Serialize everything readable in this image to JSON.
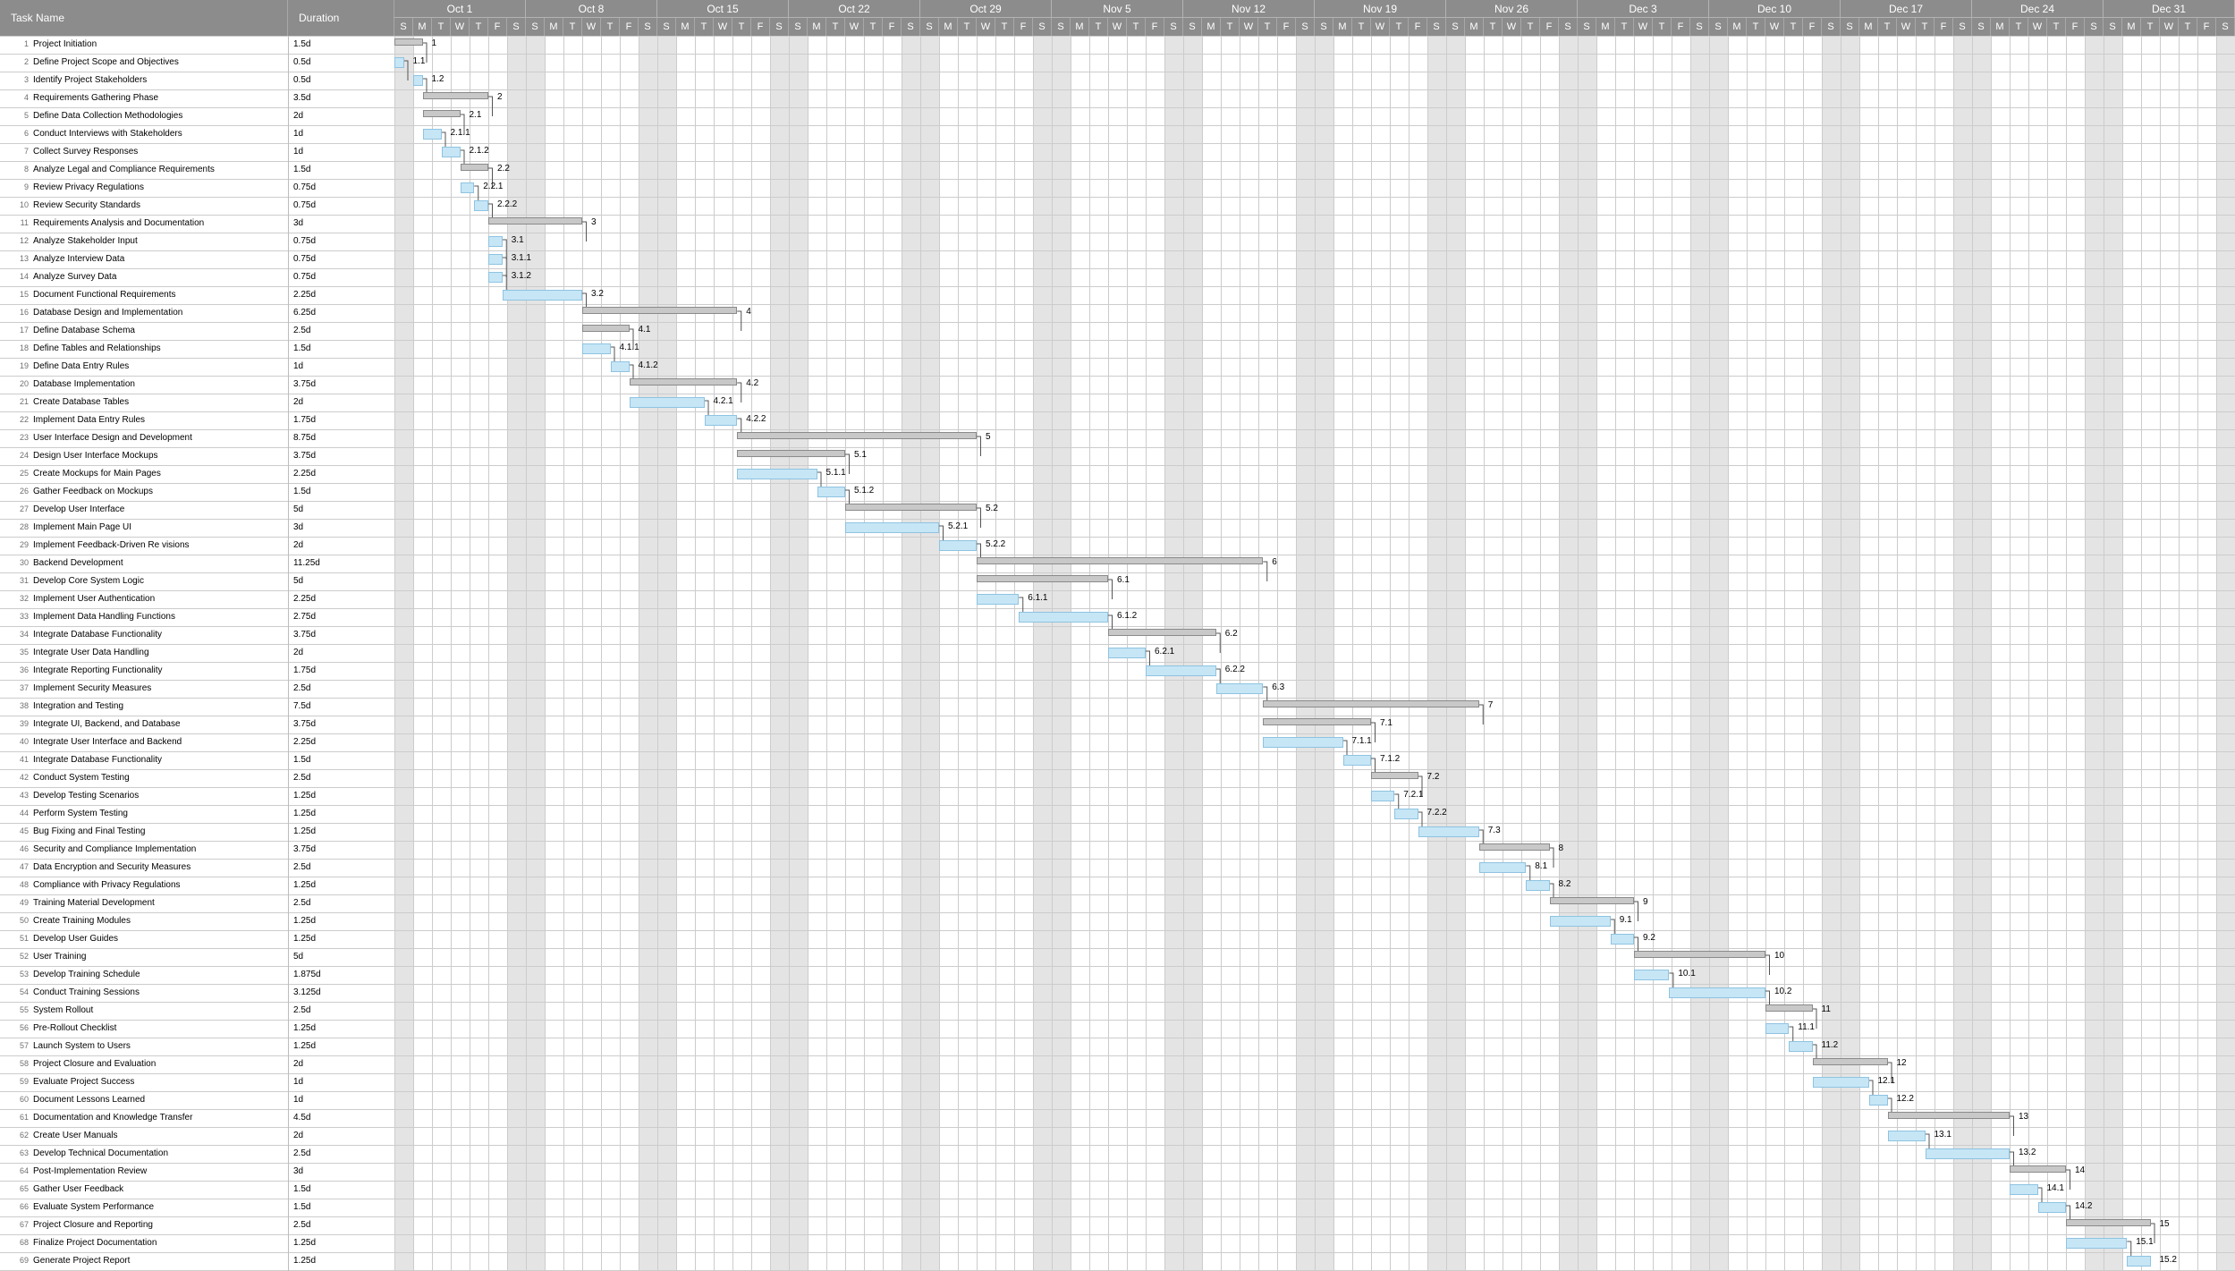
{
  "header": {
    "task_col": "Task Name",
    "duration_col": "Duration"
  },
  "weeks": [
    "Oct 1",
    "Oct 8",
    "Oct 15",
    "Oct 22",
    "Oct 29",
    "Nov 5",
    "Nov 12",
    "Nov 19",
    "Nov 26",
    "Dec 3",
    "Dec 10",
    "Dec 17",
    "Dec 24",
    "Dec 31"
  ],
  "day_letters": [
    "S",
    "M",
    "T",
    "W",
    "T",
    "F",
    "S"
  ],
  "colors": {
    "header_bg": "#8c8c8c",
    "summary_bar": "#c8c8c8",
    "task_bar": "#c6e6f6",
    "weekend_shade": "#e4e4e4",
    "grid_line": "#cccccc"
  },
  "tasks": [
    {
      "id": "1",
      "name": "Project Initiation",
      "duration": "1.5d",
      "start": 0,
      "end": 1.5,
      "summary": true,
      "label": "1"
    },
    {
      "id": "2",
      "name": "Define Project Scope and Objectives",
      "duration": "0.5d",
      "start": 0,
      "end": 0.5,
      "summary": false,
      "label": "1.1"
    },
    {
      "id": "3",
      "name": "Identify Project Stakeholders",
      "duration": "0.5d",
      "start": 1,
      "end": 1.5,
      "summary": false,
      "label": "1.2"
    },
    {
      "id": "4",
      "name": "Requirements Gathering Phase",
      "duration": "3.5d",
      "start": 1.5,
      "end": 5,
      "summary": true,
      "label": "2"
    },
    {
      "id": "5",
      "name": "Define Data Collection Methodologies",
      "duration": "2d",
      "start": 1.5,
      "end": 3.5,
      "summary": true,
      "label": "2.1"
    },
    {
      "id": "6",
      "name": "Conduct Interviews with Stakeholders",
      "duration": "1d",
      "start": 1.5,
      "end": 2.5,
      "summary": false,
      "label": "2.1.1"
    },
    {
      "id": "7",
      "name": "Collect Survey Responses",
      "duration": "1d",
      "start": 2.5,
      "end": 3.5,
      "summary": false,
      "label": "2.1.2"
    },
    {
      "id": "8",
      "name": "Analyze Legal and Compliance Requirements",
      "duration": "1.5d",
      "start": 3.5,
      "end": 5,
      "summary": true,
      "label": "2.2"
    },
    {
      "id": "9",
      "name": "Review Privacy Regulations",
      "duration": "0.75d",
      "start": 3.5,
      "end": 4.25,
      "summary": false,
      "label": "2.2.1"
    },
    {
      "id": "10",
      "name": "Review Security Standards",
      "duration": "0.75d",
      "start": 4.25,
      "end": 5,
      "summary": false,
      "label": "2.2.2"
    },
    {
      "id": "11",
      "name": "Requirements Analysis and Documentation",
      "duration": "3d",
      "start": 5,
      "end": 10,
      "summary": true,
      "label": "3"
    },
    {
      "id": "12",
      "name": "Analyze Stakeholder Input",
      "duration": "0.75d",
      "start": 5,
      "end": 5.75,
      "summary": false,
      "label": "3.1"
    },
    {
      "id": "13",
      "name": "Analyze Interview Data",
      "duration": "0.75d",
      "start": 5,
      "end": 5.75,
      "summary": false,
      "label": "3.1.1"
    },
    {
      "id": "14",
      "name": "Analyze Survey Data",
      "duration": "0.75d",
      "start": 5,
      "end": 5.75,
      "summary": false,
      "label": "3.1.2"
    },
    {
      "id": "15",
      "name": "Document Functional Requirements",
      "duration": "2.25d",
      "start": 5.75,
      "end": 10,
      "summary": false,
      "label": "3.2"
    },
    {
      "id": "16",
      "name": "Database Design and Implementation",
      "duration": "6.25d",
      "start": 10,
      "end": 18.25,
      "summary": true,
      "label": "4"
    },
    {
      "id": "17",
      "name": "Define Database Schema",
      "duration": "2.5d",
      "start": 10,
      "end": 12.5,
      "summary": true,
      "label": "4.1"
    },
    {
      "id": "18",
      "name": "Define Tables and Relationships",
      "duration": "1.5d",
      "start": 10,
      "end": 11.5,
      "summary": false,
      "label": "4.1.1"
    },
    {
      "id": "19",
      "name": "Define Data Entry Rules",
      "duration": "1d",
      "start": 11.5,
      "end": 12.5,
      "summary": false,
      "label": "4.1.2"
    },
    {
      "id": "20",
      "name": "Database Implementation",
      "duration": "3.75d",
      "start": 12.5,
      "end": 18.25,
      "summary": true,
      "label": "4.2"
    },
    {
      "id": "21",
      "name": "Create Database Tables",
      "duration": "2d",
      "start": 12.5,
      "end": 16.5,
      "summary": false,
      "label": "4.2.1"
    },
    {
      "id": "22",
      "name": "Implement Data Entry Rules",
      "duration": "1.75d",
      "start": 16.5,
      "end": 18.25,
      "summary": false,
      "label": "4.2.2"
    },
    {
      "id": "23",
      "name": "User Interface Design and Development",
      "duration": "8.75d",
      "start": 18.25,
      "end": 31,
      "summary": true,
      "label": "5"
    },
    {
      "id": "24",
      "name": "Design User Interface Mockups",
      "duration": "3.75d",
      "start": 18.25,
      "end": 24,
      "summary": true,
      "label": "5.1"
    },
    {
      "id": "25",
      "name": "Create Mockups for Main Pages",
      "duration": "2.25d",
      "start": 18.25,
      "end": 22.5,
      "summary": false,
      "label": "5.1.1"
    },
    {
      "id": "26",
      "name": "Gather Feedback on Mockups",
      "duration": "1.5d",
      "start": 22.5,
      "end": 24,
      "summary": false,
      "label": "5.1.2"
    },
    {
      "id": "27",
      "name": "Develop User Interface",
      "duration": "5d",
      "start": 24,
      "end": 31,
      "summary": true,
      "label": "5.2"
    },
    {
      "id": "28",
      "name": "Implement Main Page UI",
      "duration": "3d",
      "start": 24,
      "end": 29,
      "summary": false,
      "label": "5.2.1"
    },
    {
      "id": "29",
      "name": "Implement Feedback-Driven Re visions",
      "duration": "2d",
      "start": 29,
      "end": 31,
      "summary": false,
      "label": "5.2.2"
    },
    {
      "id": "30",
      "name": "Backend Development",
      "duration": "11.25d",
      "start": 31,
      "end": 46.25,
      "summary": true,
      "label": "6"
    },
    {
      "id": "31",
      "name": "Develop Core System Logic",
      "duration": "5d",
      "start": 31,
      "end": 38,
      "summary": true,
      "label": "6.1"
    },
    {
      "id": "32",
      "name": "Implement User Authentication",
      "duration": "2.25d",
      "start": 31,
      "end": 33.25,
      "summary": false,
      "label": "6.1.1"
    },
    {
      "id": "33",
      "name": "Implement Data Handling Functions",
      "duration": "2.75d",
      "start": 33.25,
      "end": 38,
      "summary": false,
      "label": "6.1.2"
    },
    {
      "id": "34",
      "name": "Integrate Database Functionality",
      "duration": "3.75d",
      "start": 38,
      "end": 43.75,
      "summary": true,
      "label": "6.2"
    },
    {
      "id": "35",
      "name": "Integrate User Data Handling",
      "duration": "2d",
      "start": 38,
      "end": 40,
      "summary": false,
      "label": "6.2.1"
    },
    {
      "id": "36",
      "name": "Integrate Reporting Functionality",
      "duration": "1.75d",
      "start": 40,
      "end": 43.75,
      "summary": false,
      "label": "6.2.2"
    },
    {
      "id": "37",
      "name": "Implement Security Measures",
      "duration": "2.5d",
      "start": 43.75,
      "end": 46.25,
      "summary": false,
      "label": "6.3"
    },
    {
      "id": "38",
      "name": "Integration and Testing",
      "duration": "7.5d",
      "start": 46.25,
      "end": 57.75,
      "summary": true,
      "label": "7"
    },
    {
      "id": "39",
      "name": "Integrate UI, Backend, and Database",
      "duration": "3.75d",
      "start": 46.25,
      "end": 52,
      "summary": true,
      "label": "7.1"
    },
    {
      "id": "40",
      "name": "Integrate User Interface and Backend",
      "duration": "2.25d",
      "start": 46.25,
      "end": 50.5,
      "summary": false,
      "label": "7.1.1"
    },
    {
      "id": "41",
      "name": "Integrate Database Functionality",
      "duration": "1.5d",
      "start": 50.5,
      "end": 52,
      "summary": false,
      "label": "7.1.2"
    },
    {
      "id": "42",
      "name": "Conduct System Testing",
      "duration": "2.5d",
      "start": 52,
      "end": 54.5,
      "summary": true,
      "label": "7.2"
    },
    {
      "id": "43",
      "name": "Develop Testing Scenarios",
      "duration": "1.25d",
      "start": 52,
      "end": 53.25,
      "summary": false,
      "label": "7.2.1"
    },
    {
      "id": "44",
      "name": "Perform System Testing",
      "duration": "1.25d",
      "start": 53.25,
      "end": 54.5,
      "summary": false,
      "label": "7.2.2"
    },
    {
      "id": "45",
      "name": "Bug Fixing and Final Testing",
      "duration": "1.25d",
      "start": 54.5,
      "end": 57.75,
      "summary": false,
      "label": "7.3"
    },
    {
      "id": "46",
      "name": "Security and Compliance Implementation",
      "duration": "3.75d",
      "start": 57.75,
      "end": 61.5,
      "summary": true,
      "label": "8"
    },
    {
      "id": "47",
      "name": "Data Encryption and Security Measures",
      "duration": "2.5d",
      "start": 57.75,
      "end": 60.25,
      "summary": false,
      "label": "8.1"
    },
    {
      "id": "48",
      "name": "Compliance with Privacy Regulations",
      "duration": "1.25d",
      "start": 60.25,
      "end": 61.5,
      "summary": false,
      "label": "8.2"
    },
    {
      "id": "49",
      "name": "Training Material Development",
      "duration": "2.5d",
      "start": 61.5,
      "end": 66,
      "summary": true,
      "label": "9"
    },
    {
      "id": "50",
      "name": "Create Training Modules",
      "duration": "1.25d",
      "start": 61.5,
      "end": 64.75,
      "summary": false,
      "label": "9.1"
    },
    {
      "id": "51",
      "name": "Develop User Guides",
      "duration": "1.25d",
      "start": 64.75,
      "end": 66,
      "summary": false,
      "label": "9.2"
    },
    {
      "id": "52",
      "name": "User Training",
      "duration": "5d",
      "start": 66,
      "end": 73,
      "summary": true,
      "label": "10"
    },
    {
      "id": "53",
      "name": "Develop Training Schedule",
      "duration": "1.875d",
      "start": 66,
      "end": 67.875,
      "summary": false,
      "label": "10.1"
    },
    {
      "id": "54",
      "name": "Conduct Training Sessions",
      "duration": "3.125d",
      "start": 67.875,
      "end": 73,
      "summary": false,
      "label": "10.2"
    },
    {
      "id": "55",
      "name": "System Rollout",
      "duration": "2.5d",
      "start": 73,
      "end": 75.5,
      "summary": true,
      "label": "11"
    },
    {
      "id": "56",
      "name": "Pre-Rollout Checklist",
      "duration": "1.25d",
      "start": 73,
      "end": 74.25,
      "summary": false,
      "label": "11.1"
    },
    {
      "id": "57",
      "name": "Launch System to Users",
      "duration": "1.25d",
      "start": 74.25,
      "end": 75.5,
      "summary": false,
      "label": "11.2"
    },
    {
      "id": "58",
      "name": "Project Closure and Evaluation",
      "duration": "2d",
      "start": 75.5,
      "end": 79.5,
      "summary": true,
      "label": "12"
    },
    {
      "id": "59",
      "name": "Evaluate Project Success",
      "duration": "1d",
      "start": 75.5,
      "end": 78.5,
      "summary": false,
      "label": "12.1"
    },
    {
      "id": "60",
      "name": "Document Lessons Learned",
      "duration": "1d",
      "start": 78.5,
      "end": 79.5,
      "summary": false,
      "label": "12.2"
    },
    {
      "id": "61",
      "name": "Documentation and Knowledge Transfer",
      "duration": "4.5d",
      "start": 79.5,
      "end": 86,
      "summary": true,
      "label": "13"
    },
    {
      "id": "62",
      "name": "Create User Manuals",
      "duration": "2d",
      "start": 79.5,
      "end": 81.5,
      "summary": false,
      "label": "13.1"
    },
    {
      "id": "63",
      "name": "Develop Technical Documentation",
      "duration": "2.5d",
      "start": 81.5,
      "end": 86,
      "summary": false,
      "label": "13.2"
    },
    {
      "id": "64",
      "name": "Post-Implementation Review",
      "duration": "3d",
      "start": 86,
      "end": 89,
      "summary": true,
      "label": "14"
    },
    {
      "id": "65",
      "name": "Gather User Feedback",
      "duration": "1.5d",
      "start": 86,
      "end": 87.5,
      "summary": false,
      "label": "14.1"
    },
    {
      "id": "66",
      "name": "Evaluate System Performance",
      "duration": "1.5d",
      "start": 87.5,
      "end": 89,
      "summary": false,
      "label": "14.2"
    },
    {
      "id": "67",
      "name": "Project Closure and Reporting",
      "duration": "2.5d",
      "start": 89,
      "end": 93.5,
      "summary": true,
      "label": "15"
    },
    {
      "id": "68",
      "name": "Finalize Project Documentation",
      "duration": "1.25d",
      "start": 89,
      "end": 92.25,
      "summary": false,
      "label": "15.1"
    },
    {
      "id": "69",
      "name": "Generate Project Report",
      "duration": "1.25d",
      "start": 92.25,
      "end": 93.5,
      "summary": false,
      "label": "15.2"
    }
  ]
}
